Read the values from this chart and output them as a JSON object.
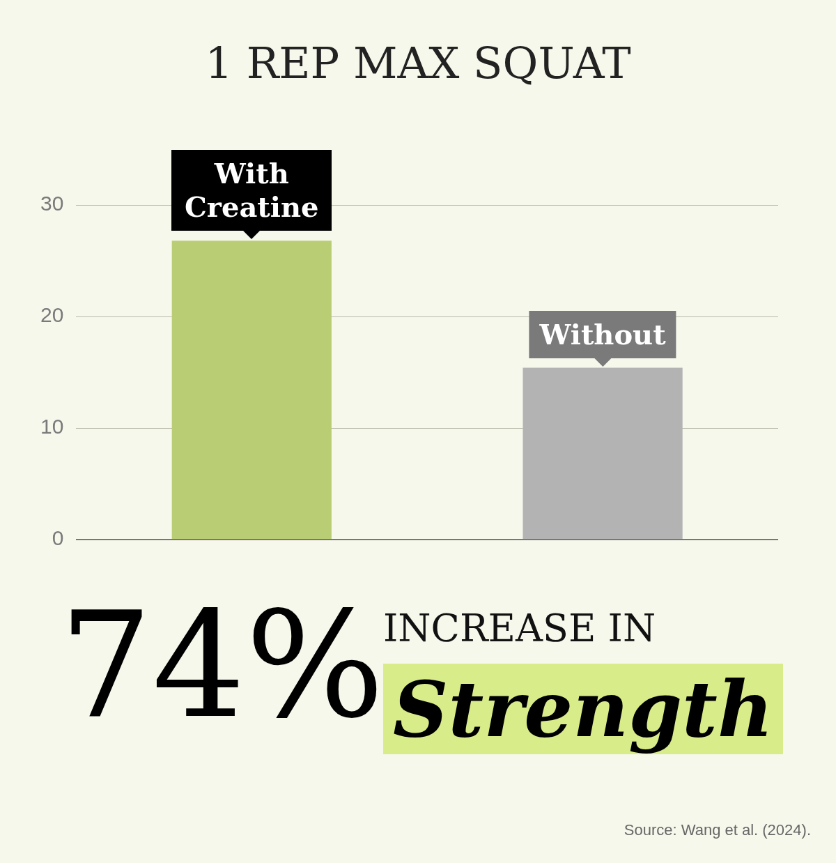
{
  "chart_data": {
    "type": "bar",
    "title": "1 REP MAX SQUAT",
    "categories": [
      "With Creatine",
      "Without"
    ],
    "values": [
      26.8,
      15.4
    ],
    "colors": [
      "#b9ce74",
      "#b3b3b3"
    ],
    "ylim": [
      0,
      30
    ],
    "yticks": [
      0,
      10,
      20,
      30
    ],
    "grid": "y",
    "legend": false,
    "annotations": [
      "74%",
      "INCREASE IN",
      "Strength",
      "Source: Wang et al. (2024)."
    ]
  }
}
